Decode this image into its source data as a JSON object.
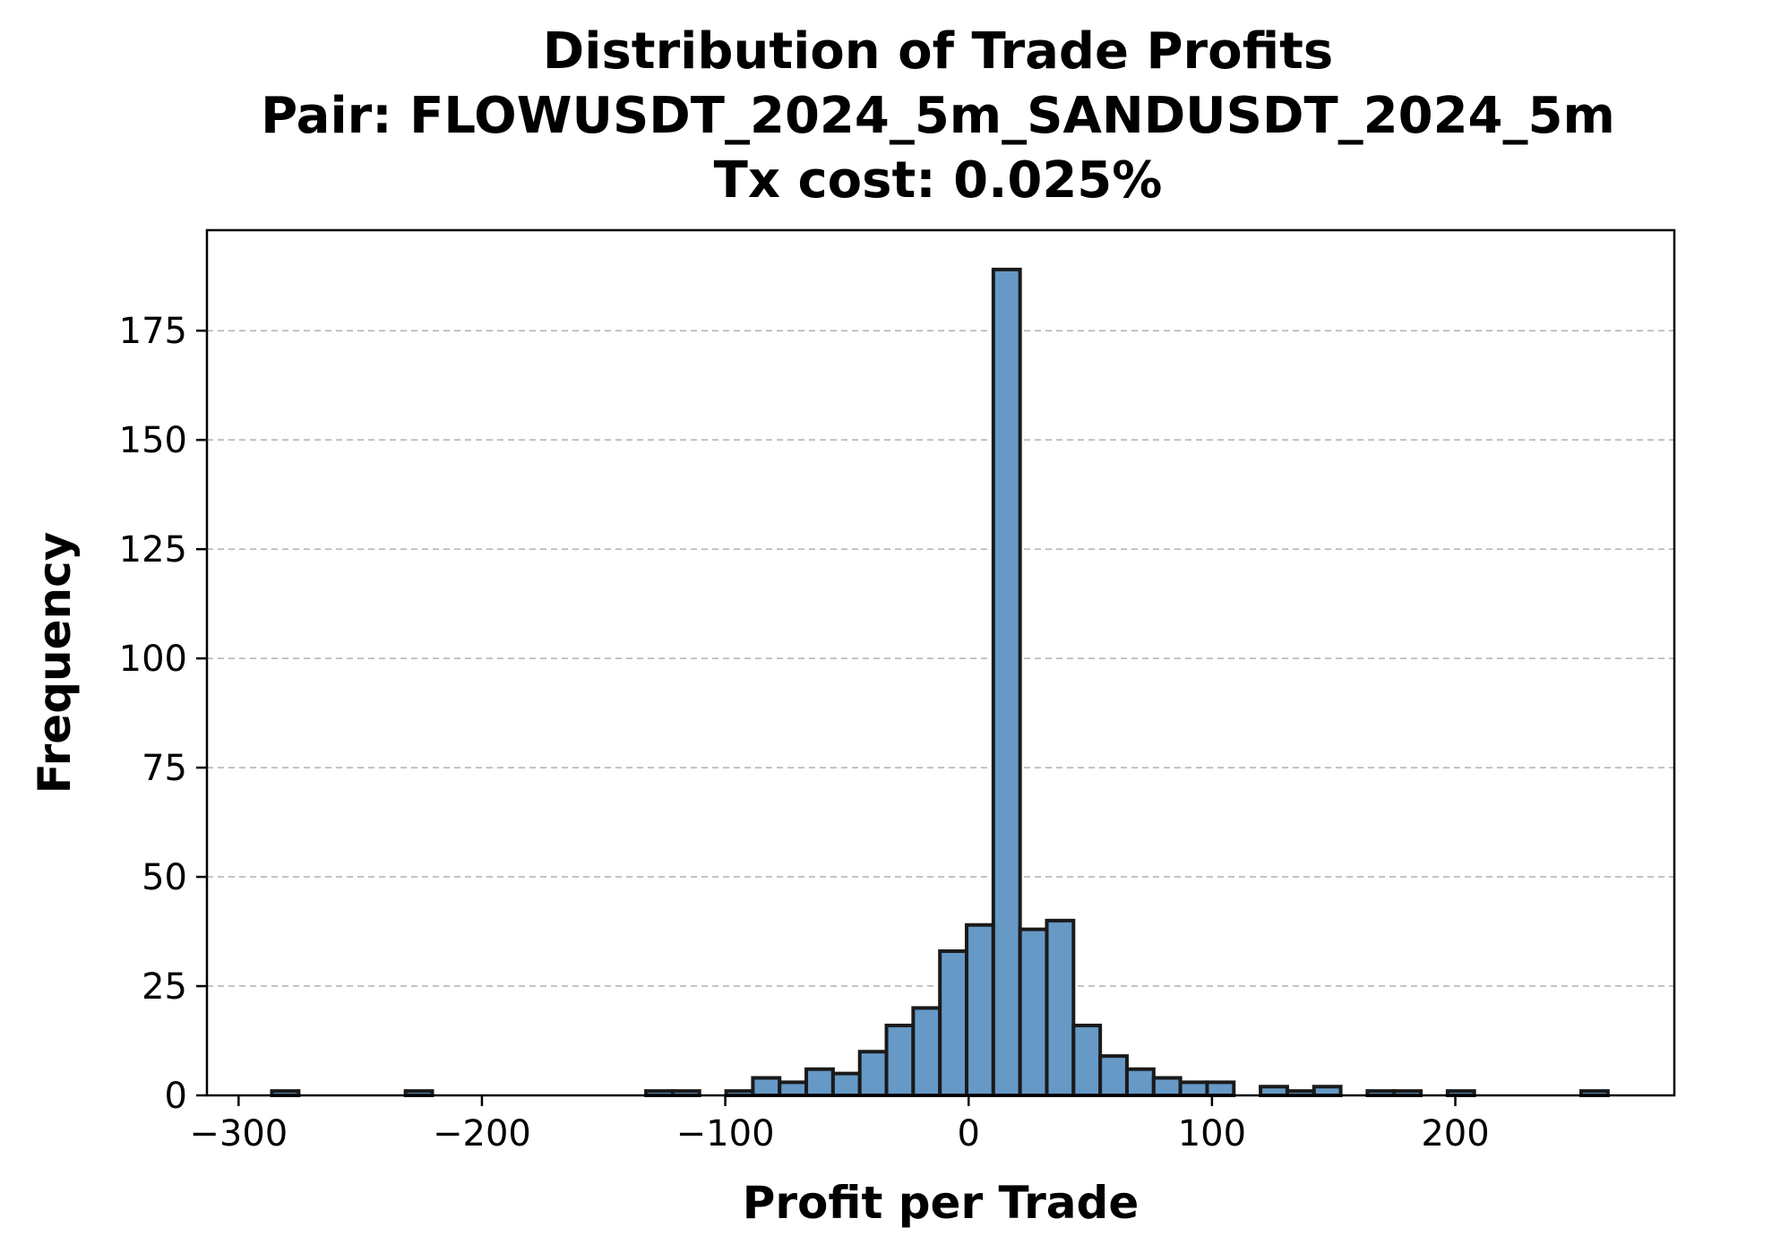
{
  "chart_data": {
    "type": "histogram",
    "title_lines": [
      "Distribution of Trade Profits",
      "Pair: FLOWUSDT_2024_5m_SANDUSDT_2024_5m",
      "Tx cost: 0.025%"
    ],
    "xlabel": "Profit per Trade",
    "ylabel": "Frequency",
    "xlim": [
      -313,
      290
    ],
    "ylim": [
      0,
      198
    ],
    "xticks": [
      -300,
      -200,
      -100,
      0,
      100,
      200
    ],
    "xtick_labels": [
      "−300",
      "−200",
      "−100",
      "0",
      "100",
      "200"
    ],
    "yticks": [
      0,
      25,
      50,
      75,
      100,
      125,
      150,
      175
    ],
    "ytick_labels": [
      "0",
      "25",
      "50",
      "75",
      "100",
      "125",
      "150",
      "175"
    ],
    "grid": "y-dashed",
    "bar_color": "#6699c6",
    "edge_color": "#1a1a1a",
    "bin_start": -286.3,
    "bin_width": 10.98,
    "counts": [
      1,
      0,
      0,
      0,
      0,
      1,
      0,
      0,
      0,
      0,
      0,
      0,
      0,
      0,
      1,
      1,
      0,
      1,
      4,
      3,
      6,
      5,
      10,
      16,
      20,
      33,
      39,
      189,
      38,
      40,
      16,
      9,
      6,
      4,
      3,
      3,
      0,
      2,
      1,
      2,
      0,
      1,
      1,
      0,
      1,
      0,
      0,
      0,
      0,
      1
    ]
  }
}
